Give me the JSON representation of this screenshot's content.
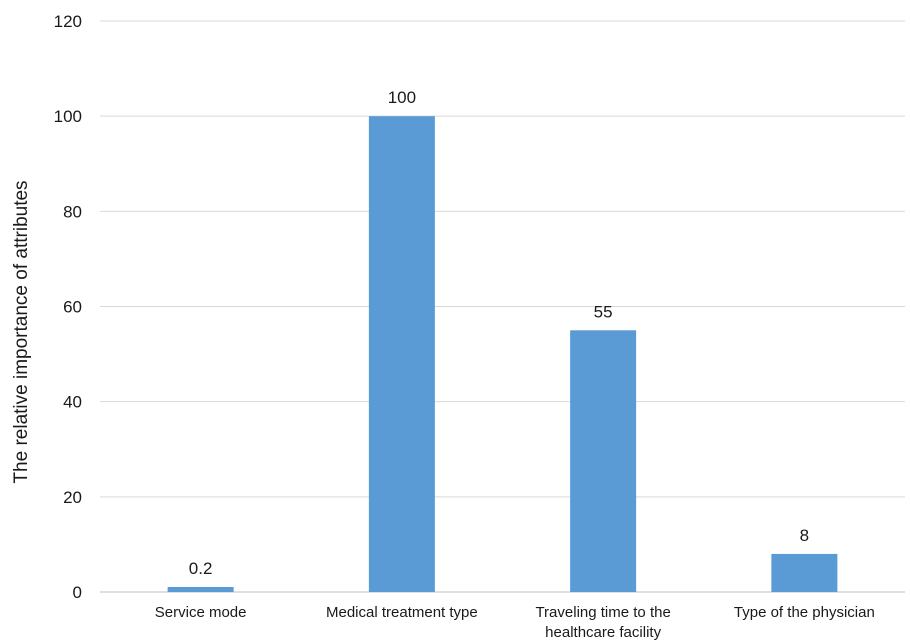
{
  "chart_data": {
    "type": "bar",
    "title": "",
    "xlabel": "",
    "ylabel": "The relative importance of attributes",
    "ylim": [
      0,
      120
    ],
    "y_ticks": [
      0,
      20,
      40,
      60,
      80,
      100,
      120
    ],
    "grid": true,
    "legend": "none",
    "bar_color": "#5b9bd5",
    "categories": [
      [
        "Service mode"
      ],
      [
        "Medical treatment type"
      ],
      [
        "Traveling time to the",
        "healthcare facility"
      ],
      [
        "Type of the physician"
      ]
    ],
    "values": [
      0.2,
      100,
      55,
      8
    ],
    "data_labels": [
      "0.2",
      "100",
      "55",
      "8"
    ]
  }
}
